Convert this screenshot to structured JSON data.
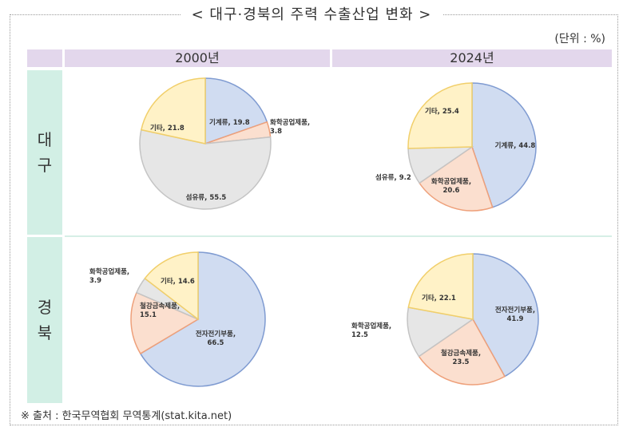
{
  "title": "< 대구·경북의 주력 수출산업 변화 >",
  "unit": "(단위 : %)",
  "headers": {
    "y2000": "2000년",
    "y2024": "2024년"
  },
  "rows": {
    "daegu": [
      "대",
      "구"
    ],
    "gyeongbuk": [
      "경",
      "북"
    ]
  },
  "source": "※ 출처 : 한국무역협회 무역통계(stat.kita.net)",
  "colors": {
    "기계류": "#d0dcf1",
    "화학공업제품": "#fbdfcf",
    "섬유류": "#e6e6e6",
    "기타": "#fff2c7",
    "전자전기부품": "#d0dcf1",
    "철강금속제품": "#fbdfcf"
  },
  "chart_data": [
    {
      "type": "pie",
      "region": "대구",
      "year": "2000년",
      "slices": [
        {
          "name": "기계류",
          "value": 19.8,
          "color": "#d0dcf1",
          "stroke": "#7f9bd1"
        },
        {
          "name": "화학공업제품",
          "value": 3.8,
          "color": "#fbdfcf",
          "stroke": "#eea07a"
        },
        {
          "name": "섬유류",
          "value": 55.5,
          "color": "#e6e6e6",
          "stroke": "#c4c4c4"
        },
        {
          "name": "기타",
          "value": 21.8,
          "color": "#fff2c7",
          "stroke": "#f1cf6a"
        }
      ]
    },
    {
      "type": "pie",
      "region": "대구",
      "year": "2024년",
      "slices": [
        {
          "name": "기계류",
          "value": 44.8,
          "color": "#d0dcf1",
          "stroke": "#7f9bd1"
        },
        {
          "name": "화학공업제품",
          "value": 20.6,
          "color": "#fbdfcf",
          "stroke": "#eea07a"
        },
        {
          "name": "섬유류",
          "value": 9.2,
          "color": "#e6e6e6",
          "stroke": "#c4c4c4"
        },
        {
          "name": "기타",
          "value": 25.4,
          "color": "#fff2c7",
          "stroke": "#f1cf6a"
        }
      ]
    },
    {
      "type": "pie",
      "region": "경북",
      "year": "2000년",
      "slices": [
        {
          "name": "전자전기부품",
          "value": 66.5,
          "color": "#d0dcf1",
          "stroke": "#7f9bd1"
        },
        {
          "name": "철강금속제품",
          "value": 15.1,
          "color": "#fbdfcf",
          "stroke": "#eea07a"
        },
        {
          "name": "화학공업제품",
          "value": 3.9,
          "color": "#e6e6e6",
          "stroke": "#c4c4c4"
        },
        {
          "name": "기타",
          "value": 14.6,
          "color": "#fff2c7",
          "stroke": "#f1cf6a"
        }
      ]
    },
    {
      "type": "pie",
      "region": "경북",
      "year": "2024년",
      "slices": [
        {
          "name": "전자전기부품",
          "value": 41.9,
          "color": "#d0dcf1",
          "stroke": "#7f9bd1"
        },
        {
          "name": "철강금속제품",
          "value": 23.5,
          "color": "#fbdfcf",
          "stroke": "#eea07a"
        },
        {
          "name": "화학공업제품",
          "value": 12.5,
          "color": "#e6e6e6",
          "stroke": "#c4c4c4"
        },
        {
          "name": "기타",
          "value": 22.1,
          "color": "#fff2c7",
          "stroke": "#f1cf6a"
        }
      ]
    }
  ]
}
